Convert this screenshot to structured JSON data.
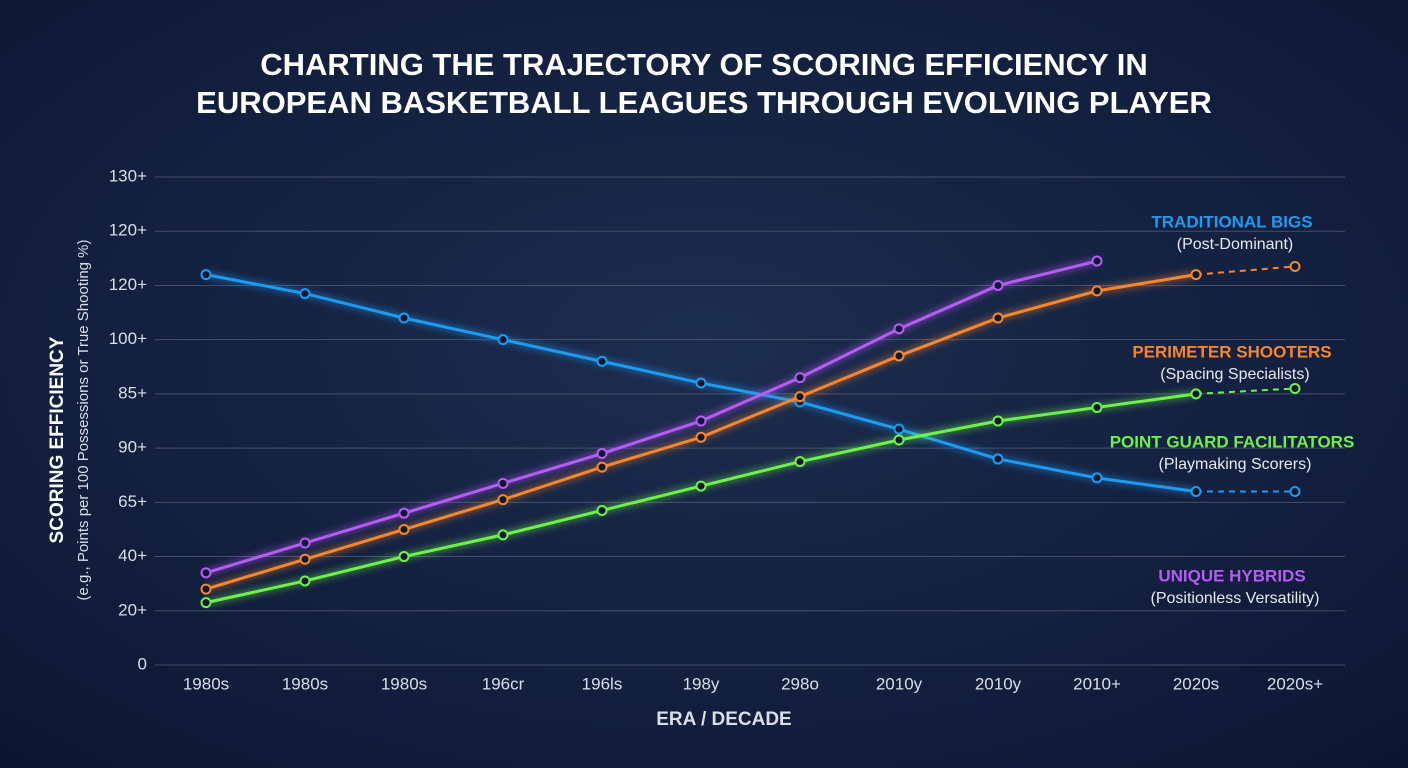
{
  "chart_data": {
    "type": "line",
    "title": [
      "CHARTING THE TRAJECTORY OF SCORING EFFICIENCY IN",
      "EUROPEAN BASKETBALL LEAGUES THROUGH EVOLVING PLAYER"
    ],
    "y_label": [
      "SCORING EFFICIENCY",
      "(e.g., Points per 100 Possessions or True Shooting %)"
    ],
    "x_label": "ERA / DECADE",
    "categories": [
      "1980s",
      "1980s",
      "1980s",
      "196cr",
      "196ls",
      "198y",
      "298o",
      "2010y",
      "2010y",
      "2010+",
      "2020s",
      "2020s+"
    ],
    "ylim": [
      0,
      9
    ],
    "yticks": [
      {
        "value": 0,
        "label": "0"
      },
      {
        "value": 1,
        "label": "20+"
      },
      {
        "value": 2,
        "label": "40+"
      },
      {
        "value": 3,
        "label": "65+"
      },
      {
        "value": 4,
        "label": "90+"
      },
      {
        "value": 5,
        "label": "85+"
      },
      {
        "value": 6,
        "label": "100+"
      },
      {
        "value": 7,
        "label": "120+"
      },
      {
        "value": 8,
        "label": "120+"
      },
      {
        "value": 9,
        "label": "130+"
      }
    ],
    "grid": true,
    "series": [
      {
        "name": "TRADITIONAL BIGS",
        "subtitle": "(Post-Dominant)",
        "color": "#1e9bf0",
        "values": [
          7.2,
          6.85,
          6.4,
          6.0,
          5.6,
          5.2,
          4.85,
          4.35,
          3.8,
          3.45,
          3.2,
          3.2
        ]
      },
      {
        "name": "PERIMETER SHOOTERS",
        "subtitle": "(Spacing Specialists)",
        "color": "#f5862e",
        "values": [
          1.4,
          1.95,
          2.5,
          3.05,
          3.65,
          4.2,
          4.95,
          5.7,
          6.4,
          6.9,
          7.2,
          7.35
        ]
      },
      {
        "name": "POINT GUARD FACILITATORS",
        "subtitle": "(Playmaking Scorers)",
        "color": "#6ef24a",
        "values": [
          1.15,
          1.55,
          2.0,
          2.4,
          2.85,
          3.3,
          3.75,
          4.15,
          4.5,
          4.75,
          5.0,
          5.1
        ]
      },
      {
        "name": "UNIQUE HYBRIDS",
        "subtitle": "(Positionless Versatility)",
        "color": "#b65cf5",
        "values": [
          1.7,
          2.25,
          2.8,
          3.35,
          3.9,
          4.5,
          5.3,
          6.2,
          7.0,
          7.45,
          null,
          null
        ]
      }
    ]
  }
}
